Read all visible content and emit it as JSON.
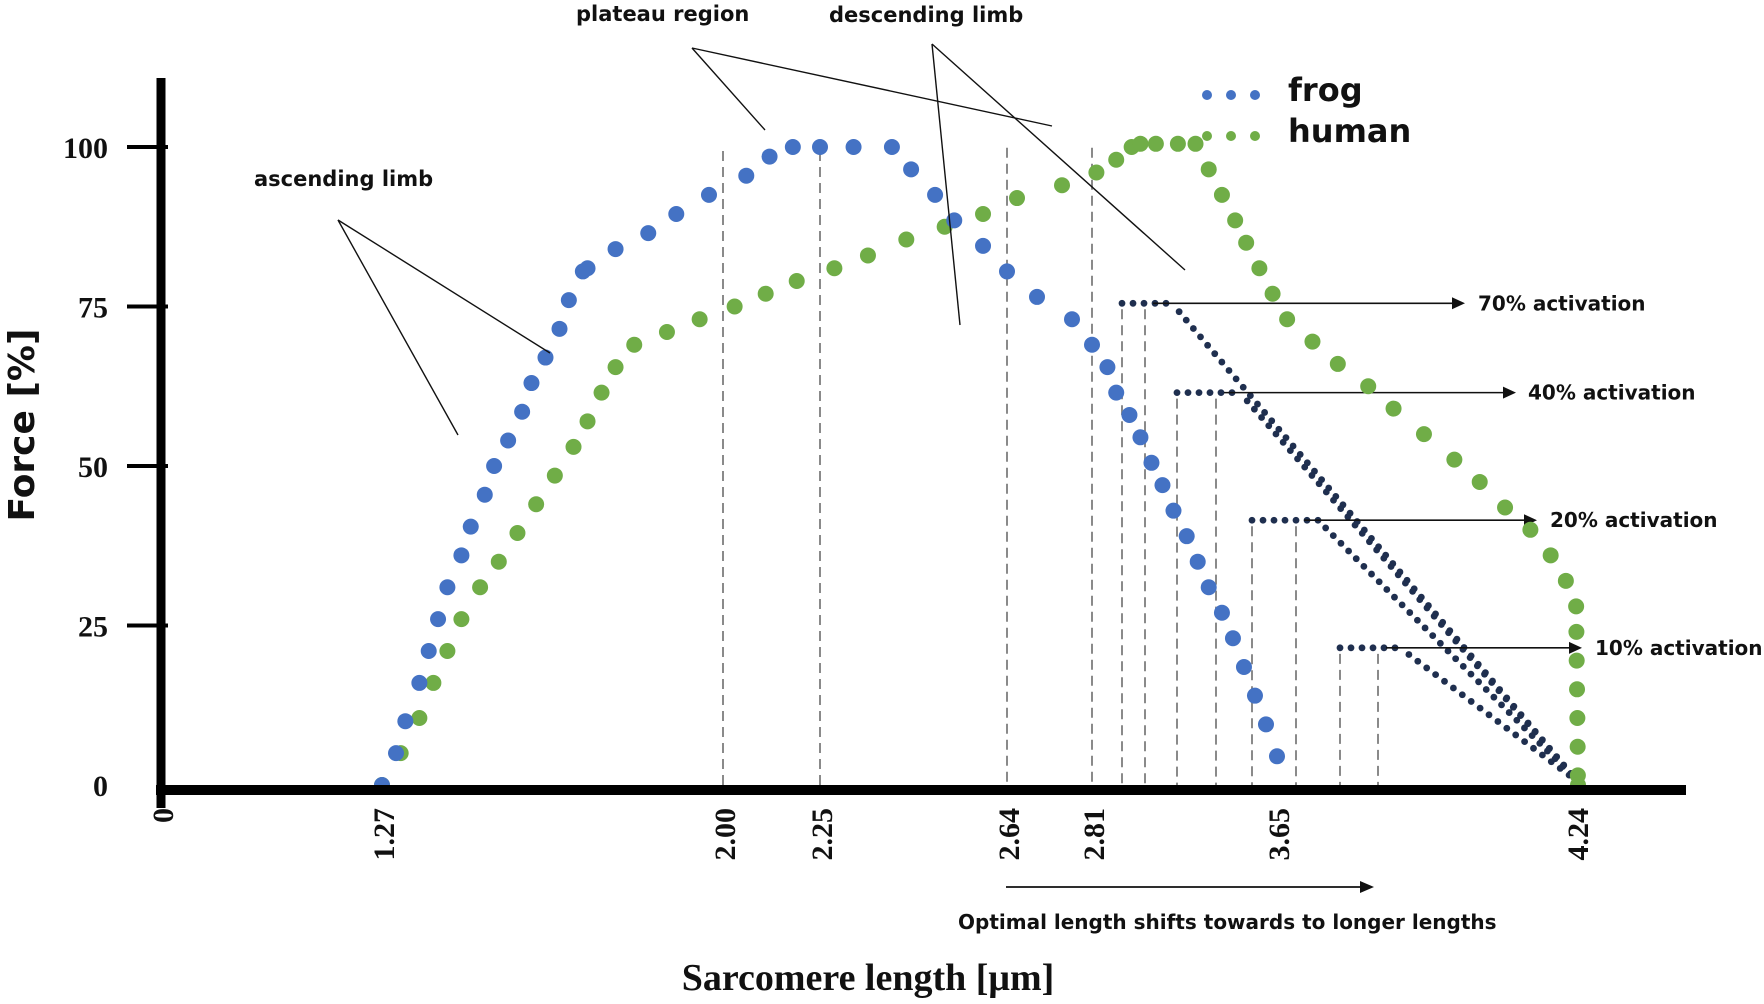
{
  "chart_data": {
    "type": "scatter",
    "ylabel": "Force [%]",
    "xlabel": "Sarcomere length [μm]",
    "x_axis_tick_labels": [
      "0",
      "1.27",
      "2.00",
      "2.25",
      "2.64",
      "2.81",
      "3.65",
      "4.24"
    ],
    "y_axis_tick_labels": [
      "0",
      "25",
      "50",
      "75",
      "100"
    ],
    "ylim": [
      0,
      100
    ],
    "legend": {
      "placement": "top-right",
      "entries": [
        "frog",
        "human"
      ]
    },
    "series": [
      {
        "name": "frog",
        "color": "#4472c4",
        "points": [
          [
            1.27,
            0
          ],
          [
            1.3,
            5
          ],
          [
            1.32,
            10
          ],
          [
            1.35,
            16
          ],
          [
            1.37,
            21
          ],
          [
            1.39,
            26
          ],
          [
            1.41,
            31
          ],
          [
            1.44,
            36
          ],
          [
            1.46,
            40.5
          ],
          [
            1.49,
            45.5
          ],
          [
            1.51,
            50
          ],
          [
            1.54,
            54
          ],
          [
            1.57,
            58.5
          ],
          [
            1.59,
            63
          ],
          [
            1.62,
            67
          ],
          [
            1.65,
            71.5
          ],
          [
            1.67,
            76
          ],
          [
            1.7,
            80.5
          ],
          [
            1.71,
            81
          ],
          [
            1.77,
            84
          ],
          [
            1.84,
            86.5
          ],
          [
            1.9,
            89.5
          ],
          [
            1.97,
            92.5
          ],
          [
            2.06,
            95.5
          ],
          [
            2.12,
            98.5
          ],
          [
            2.18,
            100
          ],
          [
            2.25,
            100
          ],
          [
            2.32,
            100
          ],
          [
            2.4,
            100
          ],
          [
            2.44,
            96.5
          ],
          [
            2.49,
            92.5
          ],
          [
            2.53,
            88.5
          ],
          [
            2.59,
            84.5
          ],
          [
            2.64,
            80.5
          ],
          [
            2.7,
            76.5
          ],
          [
            2.77,
            73
          ],
          [
            2.81,
            69
          ],
          [
            2.88,
            65.5
          ],
          [
            2.92,
            61.5
          ],
          [
            2.98,
            58
          ],
          [
            3.03,
            54.5
          ],
          [
            3.08,
            50.5
          ],
          [
            3.13,
            47
          ],
          [
            3.18,
            43
          ],
          [
            3.24,
            39
          ],
          [
            3.29,
            35
          ],
          [
            3.34,
            31
          ],
          [
            3.4,
            27
          ],
          [
            3.45,
            23
          ],
          [
            3.5,
            18.5
          ],
          [
            3.55,
            14
          ],
          [
            3.6,
            9.5
          ],
          [
            3.65,
            4.5
          ]
        ]
      },
      {
        "name": "human",
        "color": "#70ad47",
        "points": [
          [
            1.27,
            0
          ],
          [
            1.31,
            5
          ],
          [
            1.35,
            10.5
          ],
          [
            1.38,
            16
          ],
          [
            1.41,
            21
          ],
          [
            1.44,
            26
          ],
          [
            1.48,
            31
          ],
          [
            1.52,
            35
          ],
          [
            1.56,
            39.5
          ],
          [
            1.6,
            44
          ],
          [
            1.64,
            48.5
          ],
          [
            1.68,
            53
          ],
          [
            1.71,
            57
          ],
          [
            1.74,
            61.5
          ],
          [
            1.77,
            65.5
          ],
          [
            1.81,
            69
          ],
          [
            1.88,
            71
          ],
          [
            1.95,
            73
          ],
          [
            2.03,
            75
          ],
          [
            2.11,
            77
          ],
          [
            2.19,
            79
          ],
          [
            2.28,
            81
          ],
          [
            2.35,
            83
          ],
          [
            2.43,
            85.5
          ],
          [
            2.51,
            87.5
          ],
          [
            2.59,
            89.5
          ],
          [
            2.66,
            92
          ],
          [
            2.75,
            94
          ],
          [
            2.83,
            96
          ],
          [
            2.92,
            98
          ],
          [
            2.99,
            100
          ],
          [
            3.03,
            100.5
          ],
          [
            3.1,
            100.5
          ],
          [
            3.2,
            100.5
          ],
          [
            3.28,
            100.5
          ],
          [
            3.34,
            96.5
          ],
          [
            3.4,
            92.5
          ],
          [
            3.46,
            88.5
          ],
          [
            3.51,
            85
          ],
          [
            3.57,
            81
          ],
          [
            3.63,
            77
          ],
          [
            3.67,
            73
          ],
          [
            3.72,
            69.5
          ],
          [
            3.77,
            66
          ],
          [
            3.83,
            62.5
          ],
          [
            3.88,
            59
          ],
          [
            3.94,
            55
          ],
          [
            4.0,
            51
          ],
          [
            4.05,
            47.5
          ],
          [
            4.1,
            43.5
          ],
          [
            4.15,
            40
          ],
          [
            4.19,
            36
          ],
          [
            4.22,
            32
          ],
          [
            4.26,
            28
          ],
          [
            4.3,
            24
          ],
          [
            4.34,
            19.5
          ],
          [
            4.39,
            15
          ],
          [
            4.44,
            10.5
          ],
          [
            4.48,
            6
          ],
          [
            4.51,
            1.5
          ],
          [
            4.53,
            0
          ]
        ]
      }
    ],
    "activation_curves": [
      {
        "label": "70% activation",
        "plateau_force": 75.5
      },
      {
        "label": "40% activation",
        "plateau_force": 61.5
      },
      {
        "label": "20% activation",
        "plateau_force": 41.5
      },
      {
        "label": "10% activation",
        "plateau_force": 21.5
      }
    ],
    "annotations": {
      "ascending": "ascending limb",
      "plateau": "plateau region",
      "descending": "descending limb",
      "shift": "Optimal length shifts towards to longer lengths"
    },
    "activation_dot_color": "#1f2f4f"
  }
}
